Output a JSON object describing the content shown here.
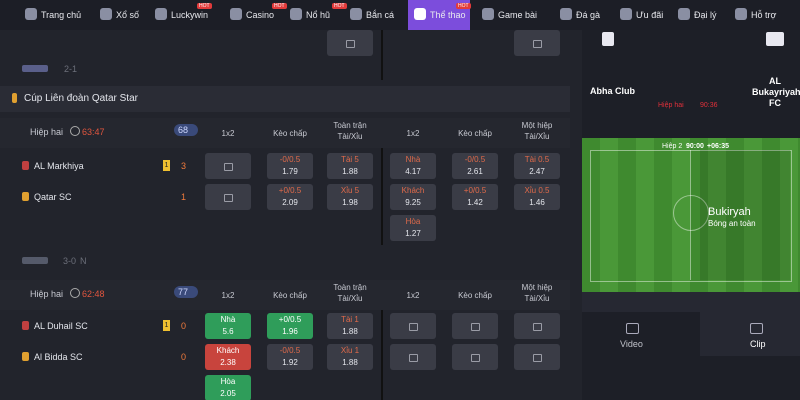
{
  "nav": {
    "hot_label": "HOT",
    "active": 6,
    "items": [
      {
        "label": "Trang chủ"
      },
      {
        "label": "Xổ số"
      },
      {
        "label": "Luckywin",
        "hot": true
      },
      {
        "label": "Casino",
        "hot": true
      },
      {
        "label": "Nổ hũ",
        "hot": true
      },
      {
        "label": "Bắn cá"
      },
      {
        "label": "Thể thao",
        "hot": true
      },
      {
        "label": "Game bài"
      },
      {
        "label": "Đá gà"
      },
      {
        "label": "Ưu đãi"
      },
      {
        "label": "Đại lý"
      },
      {
        "label": "Hỗ trợ"
      }
    ]
  },
  "prev_match": {
    "score": "2-1",
    "top_row": [
      null,
      null,
      {
        "locked": true
      },
      null,
      null,
      {
        "locked": true
      }
    ]
  },
  "league": {
    "title": "Cúp Liên đoàn Qatar Star"
  },
  "column_headers": [
    "1x2",
    "Kèo chấp",
    "Toàn trận Tài/Xỉu",
    "1x2",
    "Kèo chấp",
    "Một hiệp Tài/Xỉu"
  ],
  "matches": [
    {
      "period": "Hiệp hai",
      "clock": "63:47",
      "markets": "68",
      "teams": [
        {
          "name": "AL Markhiya",
          "card": "1",
          "score": "3"
        },
        {
          "name": "Qatar SC",
          "score": "1"
        }
      ],
      "rows": [
        [
          {
            "locked": true
          },
          {
            "top": "-0/0.5",
            "bottom": "1.79"
          },
          {
            "top": "Tài 5",
            "bottom": "1.88"
          },
          {
            "top": "Nhà",
            "bottom": "4.17"
          },
          {
            "top": "-0/0.5",
            "bottom": "2.61"
          },
          {
            "top": "Tài 0.5",
            "bottom": "2.47"
          }
        ],
        [
          {
            "locked": true
          },
          {
            "top": "+0/0.5",
            "bottom": "2.09"
          },
          {
            "top": "Xỉu 5",
            "bottom": "1.98"
          },
          {
            "top": "Khách",
            "bottom": "9.25"
          },
          {
            "top": "+0/0.5",
            "bottom": "1.42"
          },
          {
            "top": "Xỉu 0.5",
            "bottom": "1.46"
          }
        ],
        [
          null,
          null,
          null,
          {
            "top": "Hòa",
            "bottom": "1.27"
          },
          null,
          null
        ]
      ],
      "footer": {
        "score": "3-0",
        "note": "N"
      }
    },
    {
      "period": "Hiệp hai",
      "clock": "62:48",
      "markets": "77",
      "teams": [
        {
          "name": "AL Duhail SC",
          "card": "1",
          "score": "0"
        },
        {
          "name": "Al Bidda SC",
          "score": "0"
        }
      ],
      "rows": [
        [
          {
            "top": "Nhà",
            "bottom": "5.6",
            "color": "green"
          },
          {
            "top": "+0/0.5",
            "bottom": "1.96",
            "color": "green"
          },
          {
            "top": "Tài 1",
            "bottom": "1.88"
          },
          {
            "locked": true
          },
          {
            "locked": true
          },
          {
            "locked": true
          }
        ],
        [
          {
            "top": "Khách",
            "bottom": "2.38",
            "color": "red"
          },
          {
            "top": "-0/0.5",
            "bottom": "1.92"
          },
          {
            "top": "Xỉu 1",
            "bottom": "1.88"
          },
          {
            "locked": true
          },
          {
            "locked": true
          },
          {
            "locked": true
          }
        ],
        [
          {
            "top": "Hòa",
            "bottom": "2.05",
            "color": "green"
          },
          null,
          null,
          null,
          null,
          null
        ]
      ]
    }
  ],
  "live": {
    "home": "Abha Club",
    "away": "AL Bukayriyah FC",
    "status": "Hiệp hai",
    "time": "90:36",
    "pitch": {
      "period": "Hiệp 2",
      "clock": "90:00",
      "added": "+06:35",
      "team": "Bukiryah",
      "event": "Bóng an toàn"
    },
    "tabs": [
      "Video",
      "Clip"
    ]
  }
}
